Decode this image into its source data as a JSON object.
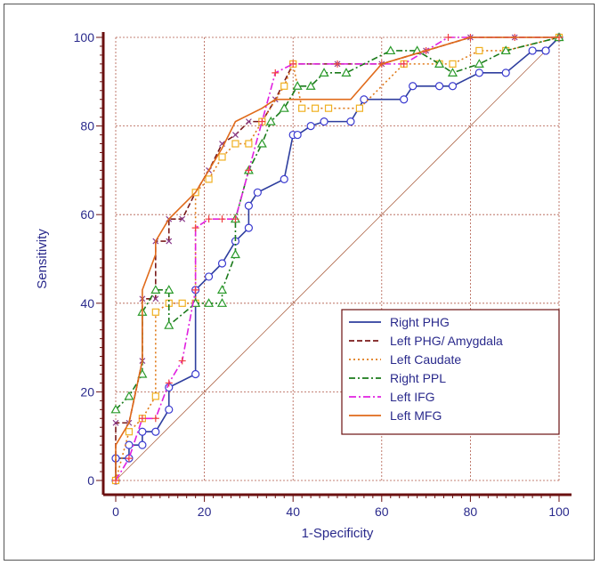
{
  "chart_data": {
    "type": "line",
    "title": "",
    "xlabel": "1-Specificity",
    "ylabel": "Sensitivity",
    "xlim": [
      0,
      100
    ],
    "ylim": [
      0,
      100
    ],
    "xticks": [
      "0",
      "20",
      "40",
      "60",
      "80",
      "100"
    ],
    "yticks": [
      "0",
      "20",
      "40",
      "60",
      "80",
      "100"
    ],
    "xtick_values": [
      0,
      20,
      40,
      60,
      80,
      100
    ],
    "ytick_values": [
      0,
      20,
      40,
      60,
      80,
      100
    ],
    "grid": true,
    "legend_position": "bottom-right",
    "reference_line": {
      "x": [
        0,
        100
      ],
      "y": [
        0,
        100
      ],
      "color": "#b06a4e"
    },
    "series": [
      {
        "name": "Right PHG",
        "color": "#2e3e9e",
        "dash": "solid",
        "marker": "circle",
        "x": [
          0,
          0,
          3,
          3,
          6,
          6,
          9,
          12,
          12,
          18,
          18,
          21,
          24,
          27,
          30,
          30,
          32,
          38,
          40,
          41,
          44,
          47,
          53,
          56,
          65,
          67,
          73,
          76,
          82,
          88,
          94,
          97,
          97,
          100
        ],
        "y": [
          0,
          5,
          5,
          8,
          8,
          11,
          11,
          16,
          21,
          24,
          43,
          46,
          49,
          54,
          57,
          62,
          65,
          68,
          78,
          78,
          80,
          81,
          81,
          86,
          86,
          89,
          89,
          89,
          92,
          92,
          97,
          97,
          97,
          100
        ]
      },
      {
        "name": "Left PHG/ Amygdala",
        "color": "#7a1a1a",
        "dash": "6,3",
        "marker": "x",
        "x": [
          0,
          0,
          3,
          6,
          6,
          9,
          9,
          12,
          12,
          15,
          18,
          21,
          24,
          27,
          30,
          33,
          36,
          40,
          50,
          60,
          70,
          80,
          90,
          100
        ],
        "y": [
          0,
          13,
          13,
          27,
          41,
          41,
          54,
          54,
          59,
          59,
          65,
          70,
          76,
          78,
          81,
          81,
          86,
          94,
          94,
          94,
          97,
          100,
          100,
          100
        ]
      },
      {
        "name": "Left Caudate",
        "color": "#e07b1a",
        "dash": "2,3",
        "marker": "square",
        "x": [
          0,
          3,
          6,
          9,
          9,
          12,
          15,
          18,
          18,
          21,
          24,
          27,
          30,
          33,
          38,
          40,
          42,
          45,
          48,
          55,
          65,
          73,
          76,
          82,
          88,
          100
        ],
        "y": [
          0,
          11,
          14,
          19,
          38,
          40,
          40,
          40,
          65,
          68,
          73,
          76,
          76,
          81,
          89,
          94,
          84,
          84,
          84,
          84,
          94,
          94,
          94,
          97,
          97,
          100
        ]
      },
      {
        "name": "Right PPL",
        "color": "#1a7a1a",
        "dash": "7,3,2,3",
        "marker": "triangle",
        "x": [
          0,
          3,
          6,
          6,
          9,
          12,
          12,
          18,
          21,
          24,
          24,
          27,
          27,
          30,
          33,
          35,
          38,
          41,
          44,
          47,
          52,
          62,
          68,
          73,
          76,
          82,
          88,
          100
        ],
        "y": [
          16,
          19,
          24,
          38,
          43,
          43,
          35,
          40,
          40,
          40,
          43,
          51,
          59,
          70,
          76,
          81,
          84,
          89,
          89,
          92,
          92,
          97,
          97,
          94,
          92,
          94,
          97,
          100
        ]
      },
      {
        "name": "Left IFG",
        "color": "#e020e0",
        "dash": "8,3,2,3",
        "marker": "plus",
        "x": [
          0,
          3,
          6,
          9,
          12,
          15,
          18,
          18,
          21,
          24,
          27,
          30,
          33,
          36,
          40,
          50,
          60,
          65,
          70,
          75,
          80,
          90,
          100
        ],
        "y": [
          0,
          5,
          14,
          14,
          22,
          27,
          43,
          57,
          59,
          59,
          59,
          70,
          81,
          92,
          94,
          94,
          94,
          94,
          97,
          100,
          100,
          100,
          100
        ]
      },
      {
        "name": "Left MFG",
        "color": "#e06a1a",
        "dash": "solid",
        "marker": "none",
        "x": [
          0,
          0,
          3,
          6,
          6,
          9,
          9,
          12,
          12,
          15,
          18,
          24,
          27,
          33,
          36,
          40,
          53,
          60,
          70,
          80,
          90,
          100
        ],
        "y": [
          0,
          8,
          13,
          27,
          43,
          51,
          54,
          59,
          59,
          62,
          65,
          75,
          81,
          84,
          86,
          86,
          86,
          94,
          97,
          100,
          100,
          100
        ]
      }
    ]
  }
}
